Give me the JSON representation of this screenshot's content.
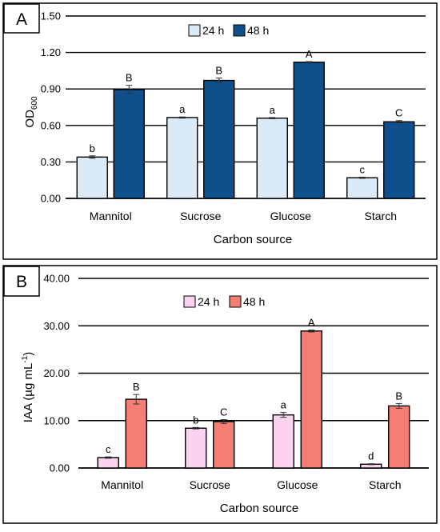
{
  "chart_data": [
    {
      "type": "bar",
      "panel_label": "A",
      "categories": [
        "Mannitol",
        "Sucrose",
        "Glucose",
        "Starch"
      ],
      "series": [
        {
          "name": "24 h",
          "values": [
            0.34,
            0.665,
            0.66,
            0.17
          ],
          "errors": [
            0.01,
            0.005,
            0.005,
            0.005
          ],
          "letters": [
            "b",
            "a",
            "a",
            "c"
          ],
          "color": "#dbeaf7"
        },
        {
          "name": "48 h",
          "values": [
            0.895,
            0.97,
            1.12,
            0.63
          ],
          "errors": [
            0.035,
            0.02,
            0.005,
            0.01
          ],
          "letters": [
            "B",
            "B",
            "A",
            "C"
          ],
          "color": "#0e4f8c"
        }
      ],
      "yticks": [
        "0.00",
        "0.30",
        "0.60",
        "0.90",
        "1.20",
        "1.50"
      ],
      "ylim": [
        0,
        1.5
      ],
      "ylabel": "OD",
      "ylabel_sub": "600",
      "xlabel": "Carbon source",
      "grid": true,
      "legend_position": "top-center"
    },
    {
      "type": "bar",
      "panel_label": "B",
      "categories": [
        "Mannitol",
        "Sucrose",
        "Glucose",
        "Starch"
      ],
      "series": [
        {
          "name": "24 h",
          "values": [
            2.2,
            8.4,
            11.2,
            0.8
          ],
          "errors": [
            0.15,
            0.15,
            0.5,
            0.1
          ],
          "letters": [
            "c",
            "b",
            "a",
            "d"
          ],
          "color": "#fbd3ef"
        },
        {
          "name": "48 h",
          "values": [
            14.5,
            9.8,
            28.9,
            13.1
          ],
          "errors": [
            1.0,
            0.4,
            0.2,
            0.5
          ],
          "letters": [
            "B",
            "C",
            "A",
            "B"
          ],
          "color": "#f47e74"
        }
      ],
      "yticks": [
        "0.00",
        "10.00",
        "20.00",
        "30.00",
        "40.00"
      ],
      "ylim": [
        0,
        40
      ],
      "ylabel": "IAA (µg mL",
      "ylabel_sup": "-1",
      "ylabel_end": ")",
      "xlabel": "Carbon source",
      "grid": true,
      "legend_position": "top-center"
    }
  ]
}
